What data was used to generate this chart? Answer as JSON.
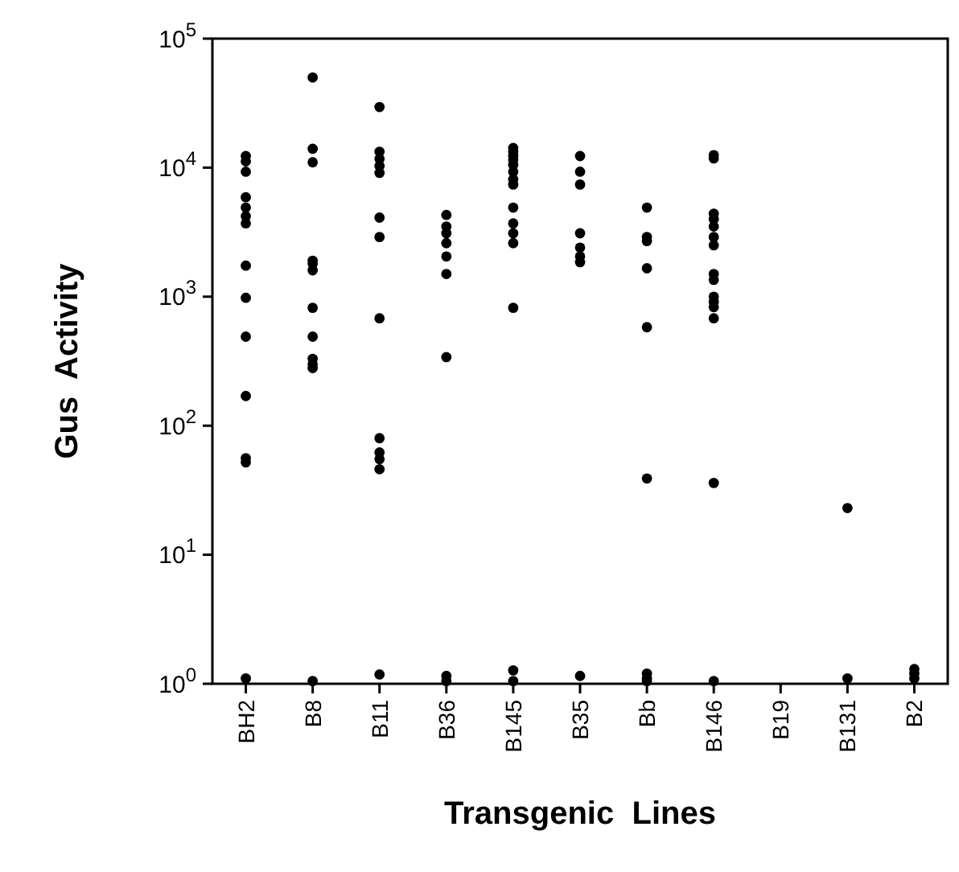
{
  "chart_data": {
    "type": "scatter",
    "xlabel": "Transgenic  Lines",
    "ylabel": "Gus  Activity",
    "categories": [
      "BH2",
      "B8",
      "B11",
      "B36",
      "B145",
      "B35",
      "Bb",
      "B146",
      "B19",
      "B131",
      "B2"
    ],
    "log": "y",
    "ylim": [
      1,
      100000
    ],
    "yticks": [
      {
        "value": 1,
        "label": "10$^{0}$"
      },
      {
        "value": 10,
        "label": "10$^{1}$"
      },
      {
        "value": 100,
        "label": "10$^{2}$"
      },
      {
        "value": 1000,
        "label": "10$^{3}$"
      },
      {
        "value": 10000,
        "label": "10$^{4}$"
      },
      {
        "value": 100000,
        "label": "10$^{5}$"
      }
    ],
    "grid": false,
    "marker": "circle",
    "series": [
      {
        "color": "#000000",
        "x": [
          "BH2",
          "BH2",
          "BH2",
          "BH2",
          "BH2",
          "BH2",
          "BH2",
          "BH2",
          "BH2",
          "BH2",
          "BH2",
          "BH2",
          "BH2",
          "BH2",
          "B8",
          "B8",
          "B8",
          "B8",
          "B8",
          "B8",
          "B8",
          "B8",
          "B8",
          "B8",
          "B8",
          "B8",
          "B11",
          "B11",
          "B11",
          "B11",
          "B11",
          "B11",
          "B11",
          "B11",
          "B11",
          "B11",
          "B11",
          "B11",
          "B11",
          "B36",
          "B36",
          "B36",
          "B36",
          "B36",
          "B36",
          "B36",
          "B36",
          "B36",
          "B145",
          "B145",
          "B145",
          "B145",
          "B145",
          "B145",
          "B145",
          "B145",
          "B145",
          "B145",
          "B145",
          "B145",
          "B145",
          "B145",
          "B145",
          "B35",
          "B35",
          "B35",
          "B35",
          "B35",
          "B35",
          "B35",
          "B35",
          "Bb",
          "Bb",
          "Bb",
          "Bb",
          "Bb",
          "Bb",
          "Bb",
          "Bb",
          "Bb",
          "B146",
          "B146",
          "B146",
          "B146",
          "B146",
          "B146",
          "B146",
          "B146",
          "B146",
          "B146",
          "B146",
          "B146",
          "B146",
          "B146",
          "B146",
          "B131",
          "B131",
          "B2",
          "B2",
          "B2"
        ],
        "values": [
          12300,
          11200,
          9300,
          5900,
          4900,
          4200,
          3700,
          1740,
          980,
          490,
          170,
          56,
          52,
          1.1,
          50000,
          14000,
          11000,
          1900,
          1800,
          1600,
          820,
          490,
          330,
          300,
          280,
          1.05,
          29500,
          13300,
          11700,
          10300,
          9100,
          4100,
          2900,
          680,
          80,
          62,
          55,
          46,
          1.18,
          4300,
          3500,
          3100,
          2600,
          2050,
          1500,
          340,
          1.15,
          1.05,
          14200,
          13300,
          12300,
          11500,
          10500,
          9300,
          8100,
          7400,
          4900,
          3700,
          3100,
          2600,
          820,
          1.27,
          1.05,
          12300,
          9300,
          7400,
          3100,
          2400,
          2050,
          1850,
          1.15,
          4900,
          2900,
          2700,
          1660,
          580,
          39,
          1.2,
          1.1,
          1.05,
          12500,
          11800,
          4400,
          4000,
          3500,
          2900,
          2500,
          1500,
          1350,
          1000,
          910,
          830,
          680,
          36,
          1.05,
          23,
          1.1,
          1.3,
          1.2,
          1.1
        ]
      }
    ]
  }
}
